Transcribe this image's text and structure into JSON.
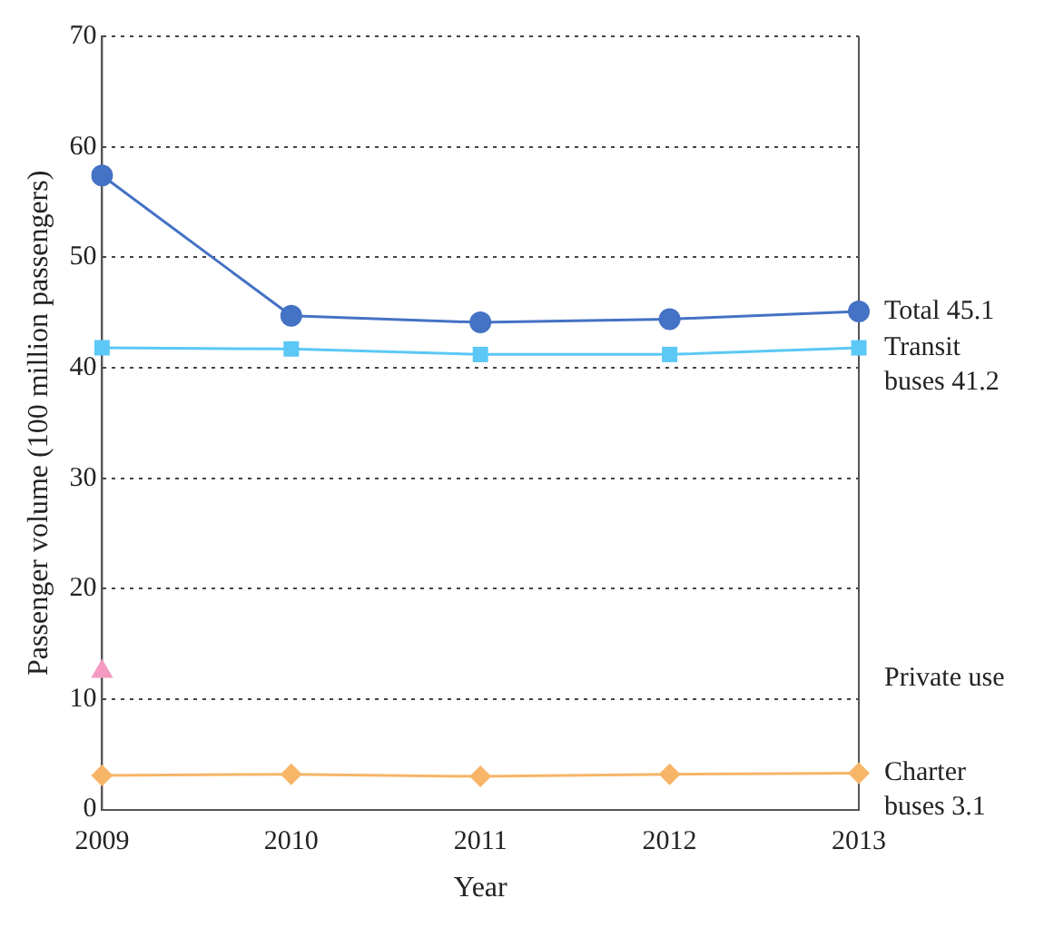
{
  "chart_data": {
    "type": "line",
    "xlabel": "Year",
    "ylabel": "Passenger volume (100 million passengers)",
    "categories": [
      "2009",
      "2010",
      "2011",
      "2012",
      "2013"
    ],
    "series": [
      {
        "color": "#4472c4",
        "marker": "circle",
        "values": [
          57.4,
          44.7,
          44.1,
          44.4,
          45.1
        ]
      },
      {
        "color": "#5bc8f5",
        "marker": "square",
        "values": [
          41.8,
          41.7,
          41.2,
          41.2,
          41.8
        ]
      },
      {
        "color": "#f49ac1",
        "marker": "triangle",
        "values": [
          12.5,
          null,
          null,
          null,
          null
        ]
      },
      {
        "color": "#f7b567",
        "marker": "diamond",
        "values": [
          3.1,
          3.2,
          3.0,
          3.2,
          3.3
        ]
      }
    ],
    "ylim": [
      0,
      70
    ],
    "yticks": [
      0,
      10,
      20,
      30,
      40,
      50,
      60,
      70
    ],
    "grid": "y",
    "legend": false,
    "annotations": [
      {
        "text": "Total 45.1",
        "x": "2013",
        "y": 45.1
      },
      {
        "text": "Transit\nbuses 41.2",
        "x": "2013",
        "y": 41.8
      },
      "Private use",
      {
        "text": "Charter\nbuses 3.1",
        "x": "2013",
        "y": 3.3
      }
    ]
  }
}
